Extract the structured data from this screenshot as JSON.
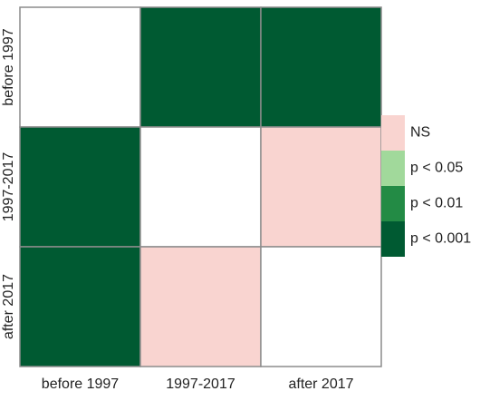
{
  "chart_data": {
    "type": "heatmap",
    "x_categories": [
      "before 1997",
      "1997-2017",
      "after 2017"
    ],
    "y_categories": [
      "before 1997",
      "1997-2017",
      "after 2017"
    ],
    "z": [
      [
        null,
        "p < 0.001",
        "p < 0.001"
      ],
      [
        "p < 0.001",
        null,
        "NS"
      ],
      [
        "p < 0.001",
        "NS",
        null
      ]
    ],
    "legend": [
      {
        "label": "NS",
        "color": "#f9d4d0"
      },
      {
        "label": "p < 0.05",
        "color": "#a1d99b"
      },
      {
        "label": "p < 0.01",
        "color": "#238b45"
      },
      {
        "label": "p < 0.001",
        "color": "#005a32"
      }
    ],
    "empty_color": "#ffffff"
  }
}
